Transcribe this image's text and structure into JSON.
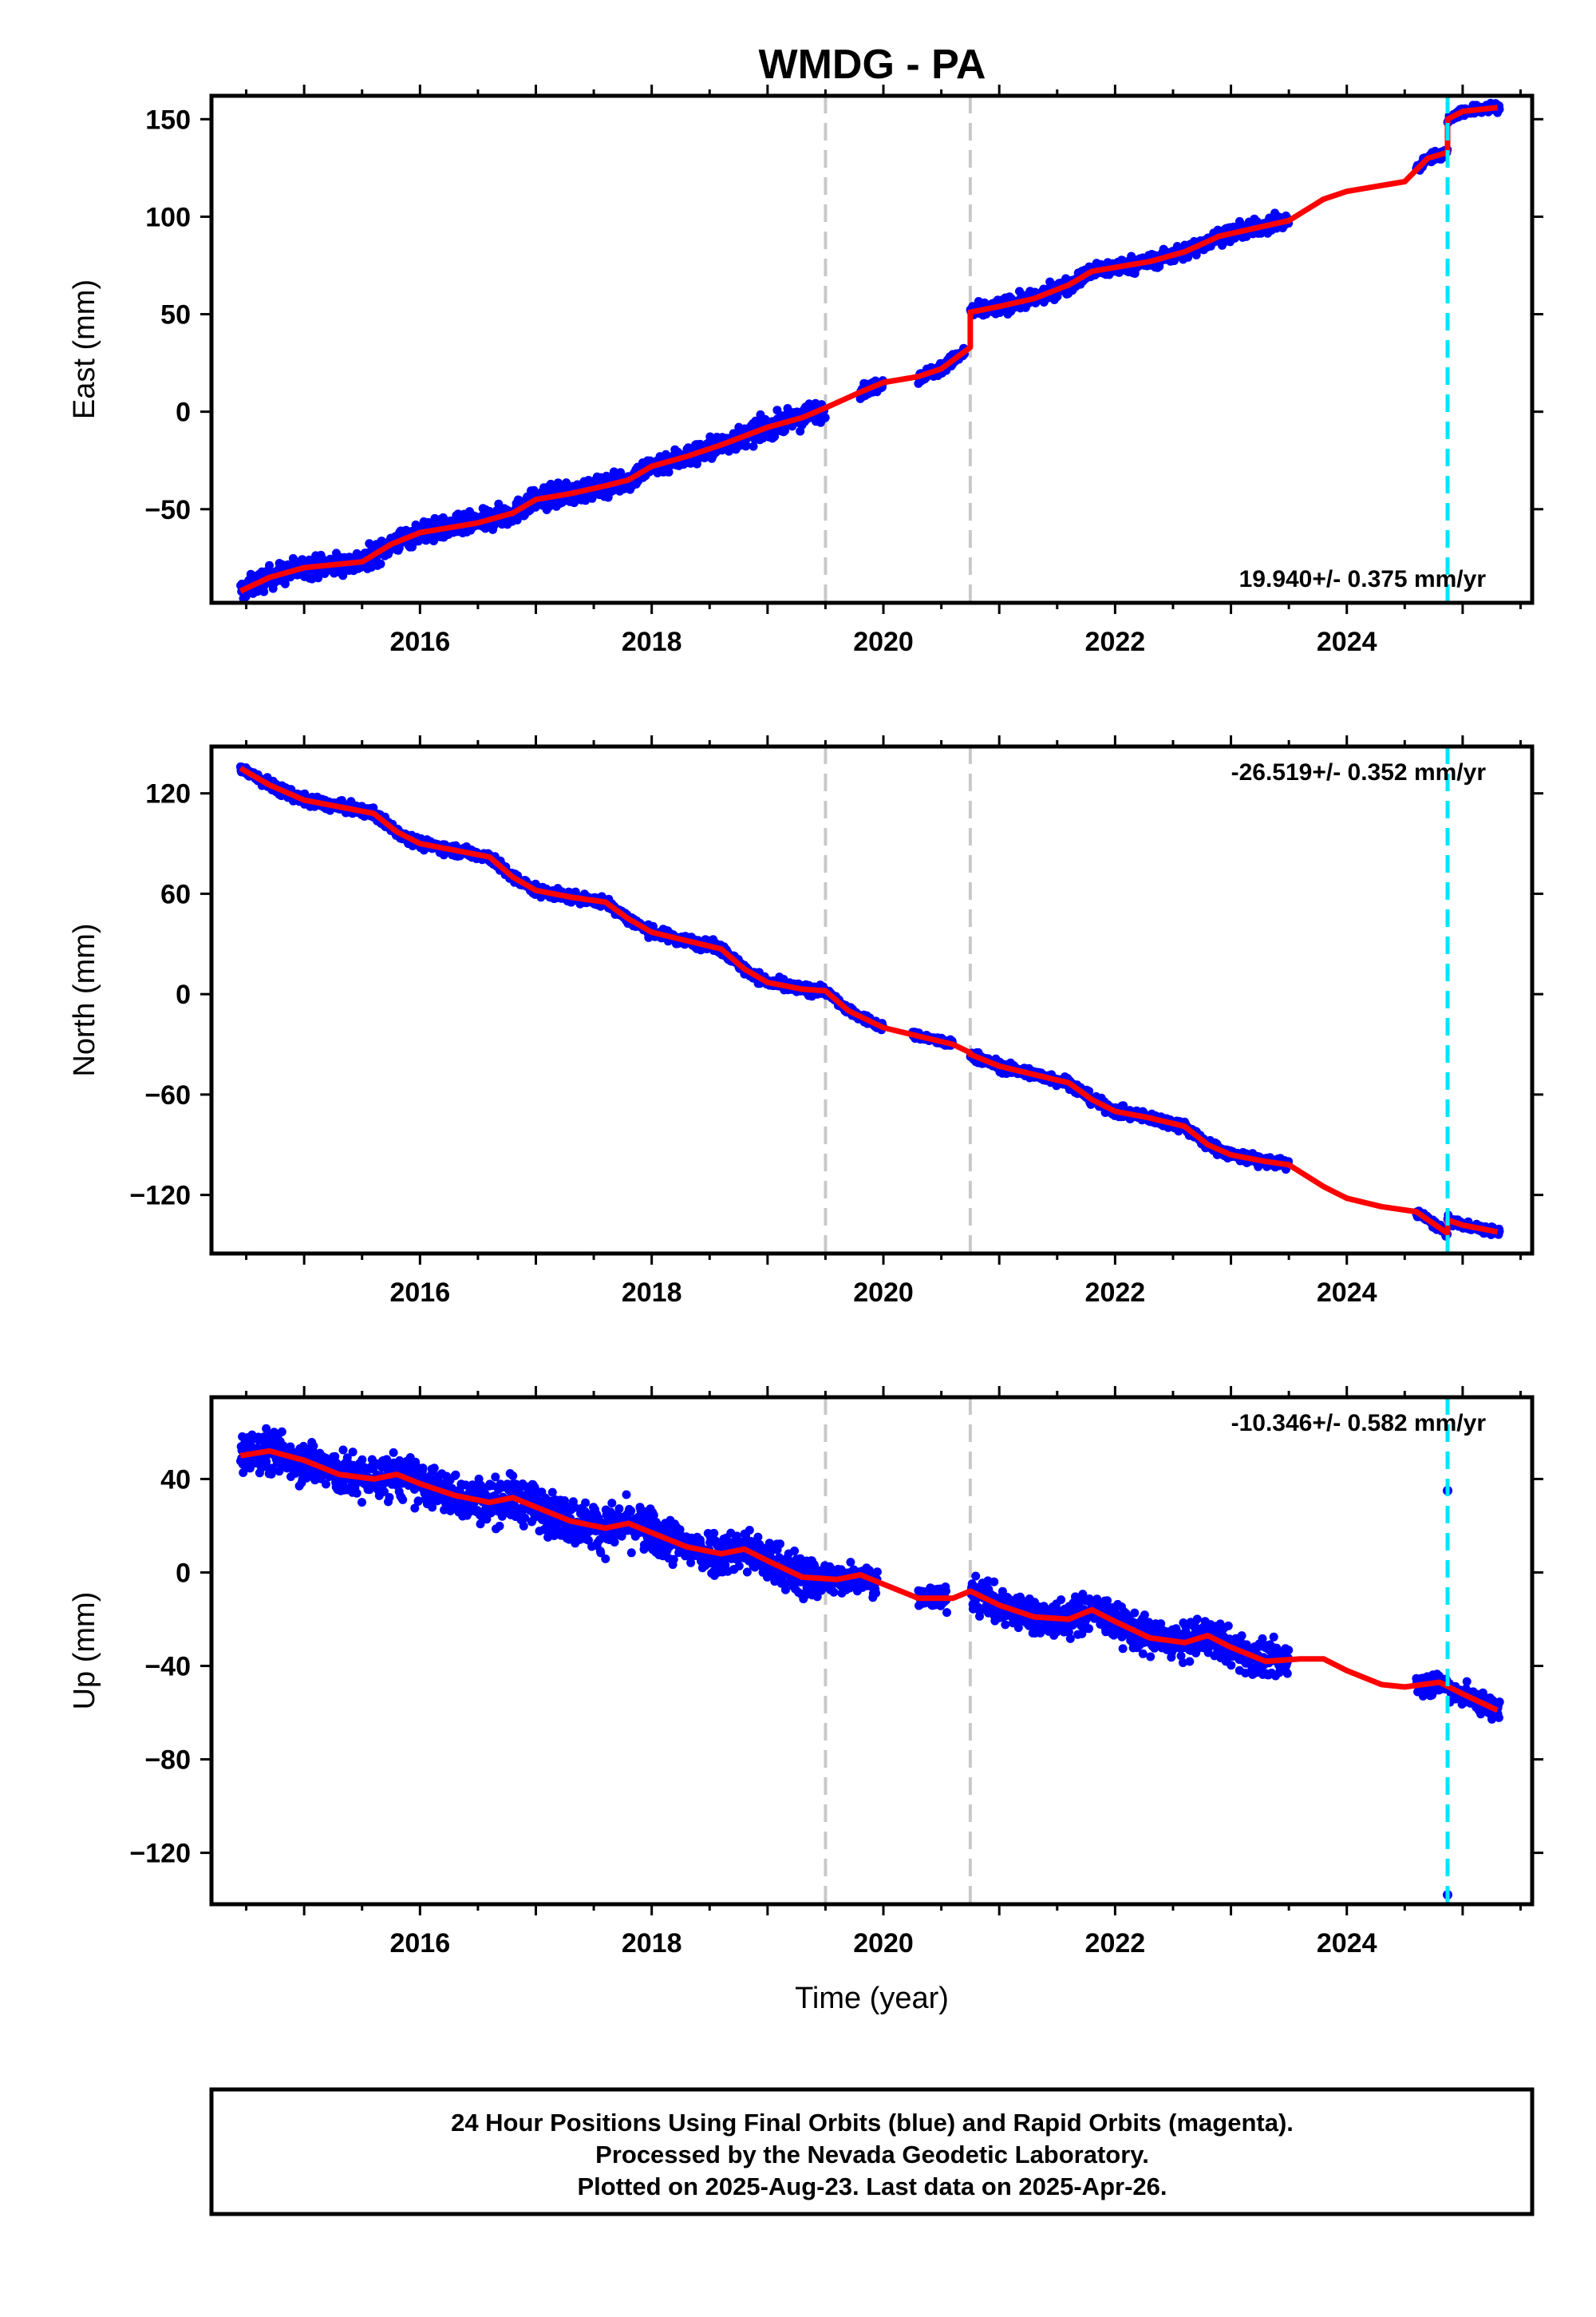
{
  "title": "WMDG - PA",
  "footer": {
    "line1": "24 Hour Positions Using Final Orbits (blue) and Rapid Orbits (magenta).",
    "line2": "Processed by the Nevada Geodetic Laboratory.",
    "line3": "Plotted on 2025-Aug-23. Last data on 2025-Apr-26."
  },
  "colors": {
    "data": "#0000ff",
    "model": "#ff0000",
    "event": "#c8c8c8",
    "equipment": "#00e5ff"
  },
  "chart_data": [
    {
      "type": "scatter",
      "ylabel": "East (mm)",
      "xlabel": "",
      "xlim": [
        2014.2,
        2025.6
      ],
      "ylim": [
        -98,
        162
      ],
      "yticks": [
        -50,
        0,
        50,
        100,
        150
      ],
      "xticks": [
        2016,
        2018,
        2020,
        2022,
        2024
      ],
      "rate_label": "19.940+/- 0.375 mm/yr",
      "rate_position": "bottom-right",
      "event_lines": [
        2019.5,
        2020.75
      ],
      "equipment_lines": [
        2024.87
      ],
      "model": [
        [
          2014.45,
          -92
        ],
        [
          2014.7,
          -85
        ],
        [
          2015.0,
          -80
        ],
        [
          2015.5,
          -77
        ],
        [
          2015.75,
          -68
        ],
        [
          2016.0,
          -62
        ],
        [
          2016.5,
          -57
        ],
        [
          2016.8,
          -52
        ],
        [
          2017.0,
          -45
        ],
        [
          2017.3,
          -42
        ],
        [
          2017.6,
          -38
        ],
        [
          2017.8,
          -35
        ],
        [
          2018.0,
          -28
        ],
        [
          2018.3,
          -23
        ],
        [
          2018.6,
          -17
        ],
        [
          2019.0,
          -8
        ],
        [
          2019.3,
          -3
        ],
        [
          2019.5,
          2
        ],
        [
          2019.8,
          10
        ],
        [
          2020.0,
          15
        ],
        [
          2020.3,
          18
        ],
        [
          2020.5,
          22
        ],
        [
          2020.75,
          33
        ],
        [
          2020.75,
          51
        ],
        [
          2021.0,
          54
        ],
        [
          2021.3,
          58
        ],
        [
          2021.6,
          65
        ],
        [
          2021.8,
          72
        ],
        [
          2022.0,
          74
        ],
        [
          2022.3,
          77
        ],
        [
          2022.6,
          82
        ],
        [
          2022.9,
          90
        ],
        [
          2023.2,
          94
        ],
        [
          2023.5,
          98
        ],
        [
          2023.8,
          109
        ],
        [
          2024.0,
          113
        ],
        [
          2024.3,
          116
        ],
        [
          2024.5,
          118
        ],
        [
          2024.7,
          130
        ],
        [
          2024.87,
          133
        ],
        [
          2024.87,
          150
        ],
        [
          2025.0,
          154
        ],
        [
          2025.3,
          156
        ]
      ],
      "data_blocks": [
        {
          "x": [
            2014.45,
            2019.5
          ],
          "spread": 7
        },
        {
          "x": [
            2019.8,
            2020.0
          ],
          "spread": 4
        },
        {
          "x": [
            2020.3,
            2020.7
          ],
          "spread": 4
        },
        {
          "x": [
            2020.75,
            2023.5
          ],
          "spread": 5
        },
        {
          "x": [
            2024.6,
            2024.87
          ],
          "spread": 3
        },
        {
          "x": [
            2024.87,
            2025.32
          ],
          "spread": 3
        }
      ]
    },
    {
      "type": "scatter",
      "ylabel": "North (mm)",
      "xlabel": "",
      "xlim": [
        2014.2,
        2025.6
      ],
      "ylim": [
        -155,
        148
      ],
      "yticks": [
        -120,
        -60,
        0,
        60,
        120
      ],
      "xticks": [
        2016,
        2018,
        2020,
        2022,
        2024
      ],
      "rate_label": "-26.519+/- 0.352 mm/yr",
      "rate_position": "top-right",
      "event_lines": [
        2019.5,
        2020.75
      ],
      "equipment_lines": [
        2024.87
      ],
      "model": [
        [
          2014.45,
          135
        ],
        [
          2014.7,
          125
        ],
        [
          2015.0,
          116
        ],
        [
          2015.3,
          112
        ],
        [
          2015.6,
          108
        ],
        [
          2015.8,
          97
        ],
        [
          2016.0,
          90
        ],
        [
          2016.3,
          86
        ],
        [
          2016.6,
          82
        ],
        [
          2016.8,
          70
        ],
        [
          2017.0,
          62
        ],
        [
          2017.3,
          58
        ],
        [
          2017.6,
          55
        ],
        [
          2017.8,
          45
        ],
        [
          2018.0,
          37
        ],
        [
          2018.3,
          32
        ],
        [
          2018.6,
          27
        ],
        [
          2018.8,
          15
        ],
        [
          2019.0,
          7
        ],
        [
          2019.3,
          3
        ],
        [
          2019.5,
          2
        ],
        [
          2019.7,
          -10
        ],
        [
          2020.0,
          -20
        ],
        [
          2020.3,
          -25
        ],
        [
          2020.6,
          -30
        ],
        [
          2020.75,
          -35
        ],
        [
          2020.75,
          -36
        ],
        [
          2021.0,
          -43
        ],
        [
          2021.3,
          -48
        ],
        [
          2021.6,
          -53
        ],
        [
          2021.8,
          -63
        ],
        [
          2022.0,
          -70
        ],
        [
          2022.3,
          -74
        ],
        [
          2022.6,
          -79
        ],
        [
          2022.8,
          -90
        ],
        [
          2023.0,
          -96
        ],
        [
          2023.3,
          -100
        ],
        [
          2023.5,
          -102
        ],
        [
          2023.8,
          -115
        ],
        [
          2024.0,
          -122
        ],
        [
          2024.3,
          -127
        ],
        [
          2024.6,
          -130
        ],
        [
          2024.87,
          -143
        ],
        [
          2024.87,
          -135
        ],
        [
          2025.0,
          -138
        ],
        [
          2025.3,
          -142
        ]
      ],
      "data_blocks": [
        {
          "x": [
            2014.45,
            2019.5
          ],
          "spread": 4
        },
        {
          "x": [
            2019.5,
            2020.0
          ],
          "spread": 3
        },
        {
          "x": [
            2020.25,
            2020.6
          ],
          "spread": 3
        },
        {
          "x": [
            2020.75,
            2023.5
          ],
          "spread": 4
        },
        {
          "x": [
            2024.6,
            2024.87
          ],
          "spread": 3
        },
        {
          "x": [
            2024.87,
            2025.32
          ],
          "spread": 3
        }
      ]
    },
    {
      "type": "scatter",
      "ylabel": "Up (mm)",
      "xlabel": "Time (year)",
      "xlim": [
        2014.2,
        2025.6
      ],
      "ylim": [
        -142,
        75
      ],
      "yticks": [
        -120,
        -80,
        -40,
        0,
        40
      ],
      "xticks": [
        2016,
        2018,
        2020,
        2022,
        2024
      ],
      "rate_label": "-10.346+/- 0.582 mm/yr",
      "rate_position": "top-right",
      "event_lines": [
        2019.5,
        2020.75
      ],
      "equipment_lines": [
        2024.87
      ],
      "model": [
        [
          2014.45,
          50
        ],
        [
          2014.7,
          52
        ],
        [
          2015.0,
          48
        ],
        [
          2015.3,
          42
        ],
        [
          2015.6,
          40
        ],
        [
          2015.8,
          42
        ],
        [
          2016.0,
          38
        ],
        [
          2016.3,
          33
        ],
        [
          2016.6,
          30
        ],
        [
          2016.8,
          32
        ],
        [
          2017.0,
          28
        ],
        [
          2017.3,
          22
        ],
        [
          2017.6,
          19
        ],
        [
          2017.8,
          21
        ],
        [
          2018.0,
          17
        ],
        [
          2018.3,
          11
        ],
        [
          2018.6,
          8
        ],
        [
          2018.8,
          10
        ],
        [
          2019.0,
          5
        ],
        [
          2019.3,
          -2
        ],
        [
          2019.6,
          -3
        ],
        [
          2019.8,
          -1
        ],
        [
          2020.0,
          -5
        ],
        [
          2020.3,
          -11
        ],
        [
          2020.6,
          -11
        ],
        [
          2020.75,
          -8
        ],
        [
          2021.0,
          -14
        ],
        [
          2021.3,
          -19
        ],
        [
          2021.6,
          -20
        ],
        [
          2021.8,
          -16
        ],
        [
          2022.0,
          -21
        ],
        [
          2022.3,
          -28
        ],
        [
          2022.6,
          -30
        ],
        [
          2022.8,
          -27
        ],
        [
          2023.0,
          -32
        ],
        [
          2023.3,
          -38
        ],
        [
          2023.6,
          -37
        ],
        [
          2023.8,
          -37
        ],
        [
          2024.0,
          -42
        ],
        [
          2024.3,
          -48
        ],
        [
          2024.5,
          -49
        ],
        [
          2024.8,
          -47
        ],
        [
          2025.0,
          -52
        ],
        [
          2025.3,
          -59
        ]
      ],
      "outliers": [
        [
          2024.87,
          35
        ],
        [
          2024.87,
          -138
        ]
      ],
      "data_blocks": [
        {
          "x": [
            2014.45,
            2019.5
          ],
          "spread": 12
        },
        {
          "x": [
            2019.5,
            2019.95
          ],
          "spread": 8
        },
        {
          "x": [
            2020.3,
            2020.55
          ],
          "spread": 6
        },
        {
          "x": [
            2020.75,
            2023.5
          ],
          "spread": 10
        },
        {
          "x": [
            2024.6,
            2025.32
          ],
          "spread": 6
        }
      ]
    }
  ]
}
